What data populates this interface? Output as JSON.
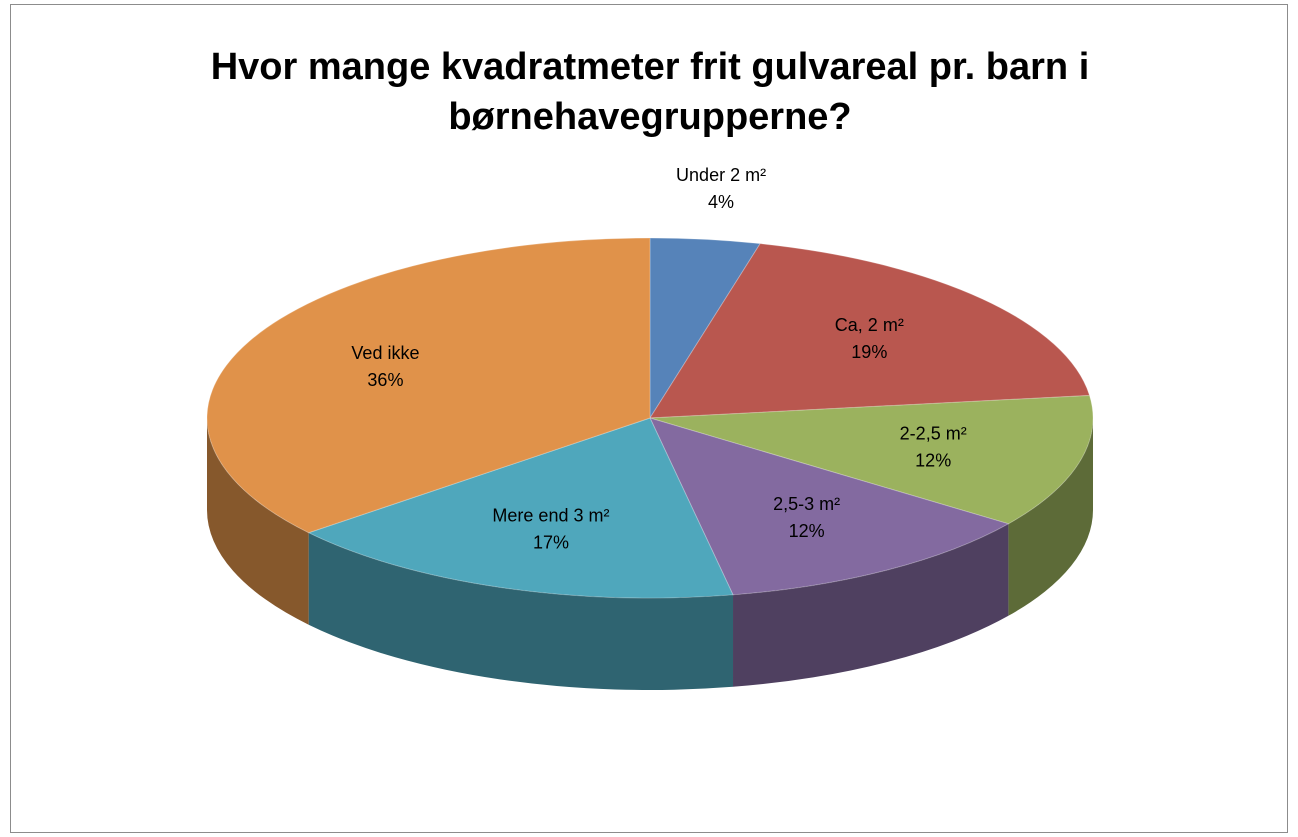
{
  "chart_data": {
    "type": "pie",
    "title": "Hvor mange kvadratmeter frit gulvareal pr. barn i børnehavegrupperne?",
    "categories": [
      "Under 2 m²",
      "Ca, 2 m²",
      "2-2,5 m²",
      "2,5-3 m²",
      "Mere end 3 m²",
      "Ved ikke"
    ],
    "values": [
      4,
      19,
      12,
      12,
      17,
      36
    ],
    "value_labels": [
      "4%",
      "19%",
      "12%",
      "12%",
      "17%",
      "36%"
    ],
    "colors": [
      "#5683b9",
      "#b9574f",
      "#9bb25e",
      "#836aa0",
      "#4fa7bc",
      "#e0924a"
    ]
  }
}
